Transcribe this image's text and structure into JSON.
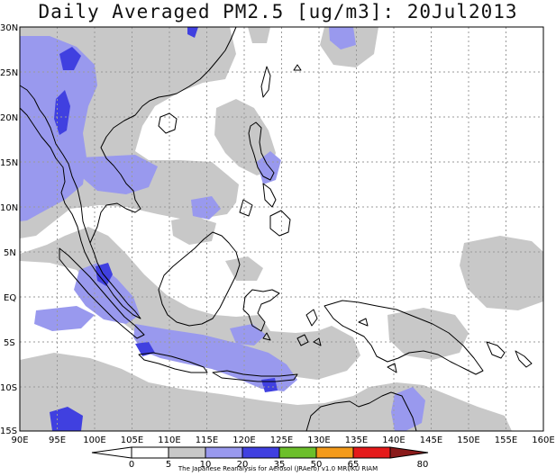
{
  "title": "Daily Averaged PM2.5 [ug/m3]: 20Jul2013",
  "lat_labels": [
    "30N",
    "25N",
    "20N",
    "15N",
    "10N",
    "5N",
    "EQ",
    "5S",
    "10S",
    "15S"
  ],
  "lon_labels": [
    "90E",
    "95E",
    "100E",
    "105E",
    "110E",
    "115E",
    "120E",
    "125E",
    "130E",
    "135E",
    "140E",
    "145E",
    "150E",
    "155E",
    "160E"
  ],
  "legend": {
    "levels": [
      "0",
      "5",
      "10",
      "20",
      "35",
      "50",
      "65",
      "80"
    ],
    "colors": [
      "#ffffff",
      "#ffffff",
      "#c8c8c8",
      "#9999ee",
      "#4040e0",
      "#6cbf2a",
      "#f39a1a",
      "#e51a1a",
      "#8a1a1a"
    ]
  },
  "credit": "The Japanese Reanalysis for Aerosol (JRAero) v1.0 MRI/KU RIAM"
}
